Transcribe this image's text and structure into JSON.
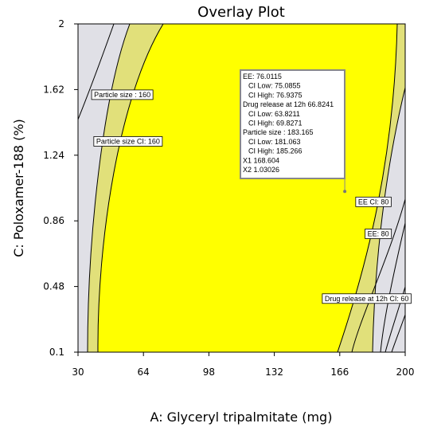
{
  "chart_data": {
    "type": "contour",
    "title": "Overlay Plot",
    "xlabel": "A: Glyceryl tripalmitate (mg)",
    "ylabel": "C: Poloxamer-188 (%)",
    "xlim": [
      30,
      200
    ],
    "ylim": [
      0.1,
      2
    ],
    "xticks": [
      "30",
      "64",
      "98",
      "132",
      "166",
      "200"
    ],
    "yticks": [
      "0.1",
      "0.48",
      "0.86",
      "1.24",
      "1.62",
      "2"
    ],
    "colors": {
      "feasible": "#ffff00",
      "ci_band": "#e1e07a",
      "excluded": "#e0e0e6",
      "line": "#000000"
    },
    "contour_flags": [
      {
        "id": "particle-size",
        "text": "Particle size : 160",
        "x": 53,
        "y": 1.59
      },
      {
        "id": "particle-size-ci",
        "text": "Particle size  CI:  160",
        "x": 56,
        "y": 1.32
      },
      {
        "id": "ee-ci",
        "text": "EE CI:  80",
        "x": 183.5,
        "y": 0.97
      },
      {
        "id": "ee",
        "text": "EE: 80",
        "x": 186,
        "y": 0.785
      },
      {
        "id": "drug-release-ci",
        "text": "Drug release at 12h CI:  60",
        "x": 180,
        "y": 0.41
      }
    ],
    "point": {
      "x": 168.604,
      "y": 1.03026
    },
    "tooltip": [
      "EE:   76.0115",
      "CI Low:   75.0855",
      "CI High:   76.9375",
      "Drug release at 12h   66.8241",
      "CI Low:   63.8211",
      "CI High:   69.8271",
      "Particle size :   183.165",
      "CI Low:   181.063",
      "CI High:   185.266",
      "X1  168.604",
      "X2  1.03026"
    ]
  }
}
